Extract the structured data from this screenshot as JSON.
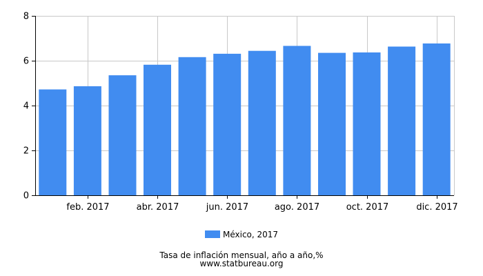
{
  "chart_data": {
    "type": "bar",
    "categories": [
      "ene. 2017",
      "feb. 2017",
      "mar. 2017",
      "abr. 2017",
      "may. 2017",
      "jun. 2017",
      "jul. 2017",
      "ago. 2017",
      "sep. 2017",
      "oct. 2017",
      "nov. 2017",
      "dic. 2017"
    ],
    "visible_tick_labels": [
      "feb. 2017",
      "abr. 2017",
      "jun. 2017",
      "ago. 2017",
      "oct. 2017",
      "dic. 2017"
    ],
    "series": [
      {
        "name": "México, 2017",
        "color": "#418cf0",
        "values": [
          4.72,
          4.86,
          5.35,
          5.82,
          6.16,
          6.31,
          6.44,
          6.66,
          6.35,
          6.37,
          6.63,
          6.77
        ]
      }
    ],
    "title": "Tasa de inflación mensual, año a año,%",
    "subtitle": "www.statbureau.org",
    "xlabel": "",
    "ylabel": "",
    "ylim": [
      0,
      8
    ],
    "yticks": [
      0,
      2,
      4,
      6,
      8
    ],
    "grid": true,
    "legend_position": "bottom-center"
  },
  "colors": {
    "bar": "#418cf0",
    "grid": "#c8c8c8",
    "axis": "#000000"
  }
}
